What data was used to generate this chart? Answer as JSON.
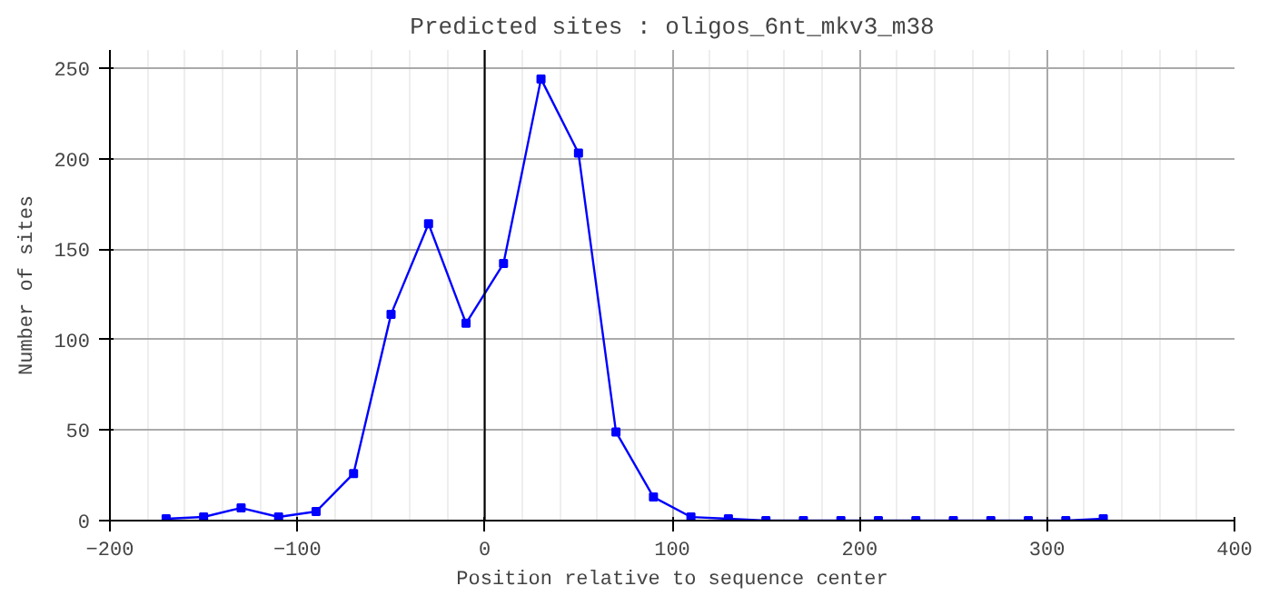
{
  "chart_data": {
    "type": "line",
    "title": "Predicted sites : oligos_6nt_mkv3_m38",
    "xlabel": "Position relative to sequence center",
    "ylabel": "Number of sites",
    "x": [
      -170,
      -150,
      -130,
      -110,
      -90,
      -70,
      -50,
      -30,
      -10,
      10,
      30,
      50,
      70,
      90,
      110,
      130,
      150,
      170,
      190,
      210,
      230,
      250,
      270,
      290,
      310,
      330
    ],
    "series": [
      {
        "color": "#0000ff",
        "values": [
          1,
          2,
          7,
          2,
          5,
          26,
          114,
          164,
          109,
          142,
          244,
          203,
          49,
          13,
          2,
          1,
          0,
          0,
          0,
          0,
          0,
          0,
          0,
          0,
          0,
          1
        ]
      }
    ],
    "xlim": [
      -200,
      400
    ],
    "ylim": [
      0,
      260
    ],
    "xticks": [
      -200,
      -100,
      0,
      100,
      200,
      300,
      400
    ],
    "yticks": [
      0,
      50,
      100,
      150,
      200,
      250
    ],
    "grid": true,
    "marker": "square",
    "line_style": "solid",
    "ref_lines": [
      {
        "axis": "x",
        "value": 0,
        "color": "#000000"
      }
    ]
  }
}
